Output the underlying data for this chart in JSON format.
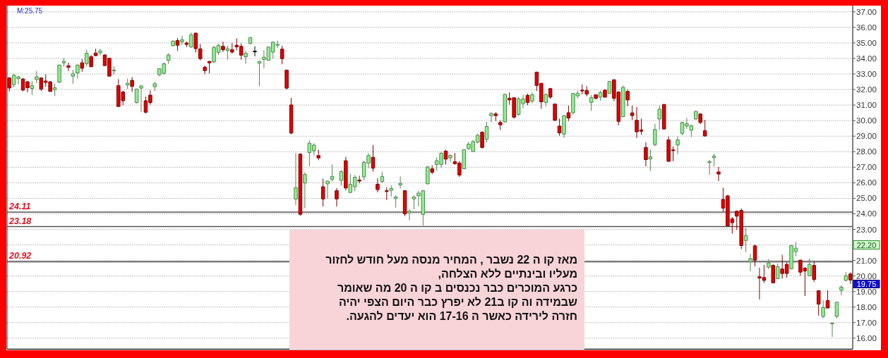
{
  "chart_data": {
    "type": "candlestick",
    "categories": [
      null,
      null,
      null,
      null,
      null,
      null,
      null,
      null,
      null,
      null,
      null,
      null,
      null,
      null,
      null,
      null,
      null,
      null,
      null,
      null,
      null,
      null,
      null,
      null,
      null,
      null,
      null,
      null,
      null,
      null,
      null,
      null,
      null,
      null,
      null,
      null,
      null,
      null,
      null,
      null,
      null,
      null,
      null,
      null,
      null,
      null,
      null,
      null,
      null,
      null,
      null,
      null,
      null,
      null,
      null,
      null,
      null,
      null,
      null,
      null,
      null,
      null,
      null,
      null,
      null,
      null,
      null,
      null,
      null,
      null,
      null,
      null,
      null,
      null,
      null,
      null,
      null,
      null,
      null,
      null,
      null,
      null,
      null,
      null,
      null,
      null,
      null,
      null,
      null,
      null,
      null,
      null,
      null,
      null,
      null,
      null,
      null,
      null,
      null,
      null,
      null,
      null,
      null,
      null,
      null,
      null,
      null,
      null,
      null,
      null,
      null,
      null,
      null,
      null,
      null,
      null,
      null,
      null,
      null,
      null,
      null,
      null,
      null,
      null,
      null,
      null,
      null,
      null,
      null,
      null,
      null,
      null,
      null,
      null,
      null,
      null,
      null,
      null,
      null,
      null,
      null,
      null,
      null,
      null,
      null,
      null,
      null,
      null,
      null,
      null,
      null,
      null,
      null,
      null,
      null,
      null,
      null,
      null,
      null,
      null,
      null,
      null,
      null,
      null,
      null,
      null,
      null,
      null,
      null,
      null,
      null,
      null,
      null,
      null,
      null,
      null,
      null,
      null,
      null,
      null,
      null,
      null,
      null,
      null,
      null,
      null
    ],
    "ohlc": [
      [
        32.74,
        32.8,
        31.88,
        32.1
      ],
      [
        32.32,
        33.02,
        32.15,
        32.92
      ],
      [
        32.71,
        32.88,
        32.32,
        32.82
      ],
      [
        32.68,
        32.73,
        31.88,
        31.97
      ],
      [
        32.5,
        32.55,
        31.83,
        32.12
      ],
      [
        32.07,
        32.55,
        31.65,
        32.25
      ],
      [
        32.64,
        33.19,
        32.4,
        32.82
      ],
      [
        32.74,
        32.8,
        31.91,
        32.03
      ],
      [
        32.55,
        32.98,
        32.18,
        32.46
      ],
      [
        32.5,
        32.55,
        31.85,
        31.88
      ],
      [
        32.0,
        32.37,
        31.58,
        32.12
      ],
      [
        32.47,
        33.62,
        32.43,
        33.57
      ],
      [
        33.71,
        34.02,
        33.49,
        33.81
      ],
      [
        33.53,
        33.74,
        33.19,
        33.43
      ],
      [
        32.86,
        33.26,
        32.37,
        33.01
      ],
      [
        33.07,
        33.63,
        32.7,
        33.57
      ],
      [
        33.72,
        33.96,
        33.14,
        33.37
      ],
      [
        33.66,
        34.56,
        33.49,
        34.33
      ],
      [
        34.11,
        34.21,
        33.44,
        33.47
      ],
      [
        34.35,
        34.63,
        34.14,
        34.18
      ],
      [
        34.36,
        34.62,
        34.2,
        34.48
      ],
      [
        34.23,
        34.26,
        33.51,
        33.54
      ],
      [
        34.01,
        34.04,
        32.85,
        32.86
      ],
      [
        33.2,
        33.49,
        32.95,
        33.26
      ],
      [
        32.25,
        32.67,
        30.88,
        30.91
      ],
      [
        31.85,
        31.91,
        30.99,
        31.28
      ],
      [
        32.29,
        32.7,
        32.03,
        32.4
      ],
      [
        32.59,
        32.8,
        31.85,
        32.21
      ],
      [
        31.16,
        32.06,
        31.1,
        32.03
      ],
      [
        32.09,
        32.25,
        30.54,
        32.24
      ],
      [
        31.28,
        31.55,
        30.46,
        30.54
      ],
      [
        31.64,
        31.95,
        31.03,
        31.16
      ],
      [
        32.18,
        32.5,
        31.91,
        32.37
      ],
      [
        32.95,
        33.37,
        32.85,
        33.34
      ],
      [
        33.04,
        33.74,
        32.96,
        33.66
      ],
      [
        33.87,
        34.33,
        33.66,
        34.23
      ],
      [
        34.82,
        35.15,
        34.78,
        35.12
      ],
      [
        35.15,
        35.3,
        34.48,
        34.85
      ],
      [
        35.08,
        35.45,
        34.88,
        35.2
      ],
      [
        35.0,
        35.08,
        34.74,
        34.9
      ],
      [
        34.74,
        35.67,
        34.68,
        35.52
      ],
      [
        35.63,
        35.67,
        34.38,
        34.63
      ],
      [
        34.62,
        34.93,
        33.87,
        33.99
      ],
      [
        33.44,
        33.54,
        32.98,
        33.22
      ],
      [
        33.81,
        33.84,
        33.04,
        33.72
      ],
      [
        33.78,
        34.82,
        33.72,
        34.71
      ],
      [
        34.38,
        34.93,
        34.23,
        34.85
      ],
      [
        34.78,
        35.08,
        34.41,
        34.56
      ],
      [
        34.51,
        34.81,
        33.92,
        34.62
      ],
      [
        34.56,
        35.0,
        34.32,
        34.41
      ],
      [
        34.85,
        35.3,
        34.53,
        34.75
      ],
      [
        34.78,
        34.97,
        33.92,
        34.21
      ],
      [
        34.11,
        34.48,
        33.66,
        34.33
      ],
      [
        34.96,
        35.4,
        34.91,
        35.33
      ],
      [
        34.47,
        34.78,
        34.14,
        34.47
      ],
      [
        33.69,
        33.84,
        32.22,
        33.81
      ],
      [
        33.93,
        34.53,
        33.37,
        34.08
      ],
      [
        33.89,
        34.76,
        33.86,
        34.74
      ],
      [
        34.41,
        35.08,
        33.99,
        35.05
      ],
      [
        34.85,
        35.15,
        34.68,
        34.9
      ],
      [
        34.6,
        34.82,
        33.63,
        33.99
      ],
      [
        33.25,
        33.28,
        32.0,
        32.09
      ],
      [
        31.01,
        31.46,
        29.13,
        29.2
      ],
      [
        24.95,
        27.91,
        24.56,
        25.68
      ],
      [
        27.84,
        27.9,
        23.88,
        23.97
      ],
      [
        25.98,
        26.68,
        24.37,
        26.53
      ],
      [
        27.94,
        28.73,
        27.05,
        28.54
      ],
      [
        28.06,
        28.54,
        27.75,
        28.42
      ],
      [
        27.75,
        28.12,
        27.45,
        27.6
      ],
      [
        25.74,
        26.27,
        24.47,
        24.96
      ],
      [
        25.93,
        26.15,
        24.96,
        26.11
      ],
      [
        26.23,
        27.17,
        26.08,
        26.41
      ],
      [
        25.49,
        25.66,
        24.47,
        24.96
      ],
      [
        26.15,
        26.82,
        25.81,
        26.72
      ],
      [
        27.42,
        27.67,
        25.51,
        25.66
      ],
      [
        25.37,
        26.56,
        25.34,
        25.9
      ],
      [
        25.74,
        26.5,
        25.46,
        26.35
      ],
      [
        26.18,
        26.45,
        25.96,
        26.11
      ],
      [
        26.38,
        27.42,
        26.15,
        27.32
      ],
      [
        27.27,
        27.91,
        26.94,
        27.75
      ],
      [
        27.64,
        28.42,
        26.72,
        26.94
      ],
      [
        25.9,
        26.3,
        25.38,
        25.56
      ],
      [
        26.08,
        26.72,
        25.98,
        26.41
      ],
      [
        25.49,
        25.71,
        24.89,
        25.44
      ],
      [
        25.51,
        25.83,
        25.11,
        25.63
      ],
      [
        24.99,
        25.19,
        24.4,
        25.08
      ],
      [
        25.86,
        26.42,
        25.63,
        25.96
      ],
      [
        25.49,
        25.53,
        23.85,
        24.0
      ],
      [
        24.07,
        24.29,
        23.58,
        24.18
      ],
      [
        24.96,
        25.19,
        24.29,
        25.08
      ],
      [
        25.16,
        25.49,
        24.47,
        25.34
      ],
      [
        23.97,
        25.51,
        23.25,
        25.49
      ],
      [
        25.93,
        27.08,
        25.9,
        27.02
      ],
      [
        26.9,
        27.12,
        26.57,
        26.68
      ],
      [
        27.18,
        27.64,
        26.78,
        27.42
      ],
      [
        27.18,
        27.99,
        26.97,
        27.9
      ],
      [
        28.04,
        28.12,
        27.17,
        27.52
      ],
      [
        27.6,
        27.84,
        27.35,
        27.76
      ],
      [
        27.35,
        27.91,
        27.17,
        27.23
      ],
      [
        27.27,
        27.39,
        26.38,
        26.5
      ],
      [
        26.9,
        28.16,
        26.87,
        28.13
      ],
      [
        28.19,
        28.64,
        28.12,
        28.49
      ],
      [
        28.01,
        28.76,
        27.99,
        28.65
      ],
      [
        28.61,
        29.16,
        28.54,
        29.06
      ],
      [
        29.25,
        29.32,
        28.21,
        28.27
      ],
      [
        28.8,
        29.92,
        28.61,
        29.62
      ],
      [
        30.32,
        30.54,
        29.88,
        30.46
      ],
      [
        30.43,
        30.54,
        29.98,
        30.32
      ],
      [
        29.88,
        30.02,
        29.4,
        29.73
      ],
      [
        29.92,
        31.74,
        29.88,
        31.69
      ],
      [
        31.44,
        31.84,
        31.02,
        31.33
      ],
      [
        31.47,
        31.5,
        30.14,
        30.22
      ],
      [
        30.4,
        31.51,
        30.32,
        31.41
      ],
      [
        31.1,
        31.66,
        30.8,
        31.39
      ],
      [
        31.63,
        31.74,
        30.99,
        31.17
      ],
      [
        31.26,
        31.81,
        31.11,
        31.66
      ],
      [
        33.12,
        33.15,
        31.91,
        32.26
      ],
      [
        32.4,
        32.43,
        30.77,
        31.21
      ],
      [
        31.17,
        31.74,
        30.92,
        31.69
      ],
      [
        32.06,
        32.11,
        31.41,
        31.51
      ],
      [
        31.07,
        31.1,
        29.98,
        30.02
      ],
      [
        29.65,
        30.13,
        29.03,
        29.21
      ],
      [
        29.13,
        30.37,
        28.88,
        30.32
      ],
      [
        30.51,
        30.96,
        29.98,
        30.17
      ],
      [
        30.51,
        31.78,
        30.4,
        31.74
      ],
      [
        31.59,
        31.93,
        31.44,
        31.76
      ],
      [
        31.96,
        32.33,
        31.69,
        31.91
      ],
      [
        31.93,
        32.21,
        31.56,
        31.71
      ],
      [
        31.17,
        31.66,
        30.62,
        31.48
      ],
      [
        31.66,
        31.69,
        31.36,
        31.44
      ],
      [
        31.51,
        31.93,
        31.29,
        31.81
      ],
      [
        31.96,
        32.03,
        31.48,
        31.51
      ],
      [
        31.76,
        32.55,
        31.74,
        32.52
      ],
      [
        32.63,
        32.66,
        31.26,
        31.44
      ],
      [
        31.84,
        31.88,
        29.7,
        29.95
      ],
      [
        30.25,
        32.26,
        30.22,
        32.14
      ],
      [
        31.88,
        32.0,
        30.92,
        31.33
      ],
      [
        30.5,
        30.96,
        30.05,
        30.32
      ],
      [
        30.02,
        30.87,
        28.88,
        29.28
      ],
      [
        29.4,
        30.13,
        29.09,
        29.32
      ],
      [
        28.27,
        28.61,
        27.05,
        27.49
      ],
      [
        27.54,
        28.16,
        26.75,
        27.67
      ],
      [
        28.46,
        29.8,
        28.34,
        29.43
      ],
      [
        30.1,
        30.95,
        29.4,
        30.74
      ],
      [
        31.04,
        31.07,
        29.43,
        29.46
      ],
      [
        28.76,
        28.98,
        27.35,
        27.38
      ],
      [
        28.12,
        28.34,
        27.39,
        28.07
      ],
      [
        28.43,
        28.98,
        27.84,
        28.76
      ],
      [
        29.18,
        29.92,
        29.06,
        29.88
      ],
      [
        29.65,
        30.17,
        29.47,
        29.8
      ],
      [
        29.38,
        29.73,
        28.95,
        29.68
      ],
      [
        30.1,
        30.65,
        30.07,
        30.59
      ],
      [
        30.43,
        30.47,
        29.77,
        29.88
      ],
      [
        29.35,
        30.05,
        28.98,
        29.01
      ],
      [
        27.3,
        27.46,
        26.5,
        27.37
      ],
      [
        27.61,
        27.86,
        27.05,
        27.72
      ],
      [
        26.7,
        27.02,
        26.11,
        26.56
      ],
      [
        24.93,
        25.68,
        24.14,
        24.37
      ],
      [
        25.16,
        25.22,
        23.18,
        23.22
      ],
      [
        23.67,
        23.8,
        22.73,
        23.43
      ],
      [
        24.17,
        24.22,
        22.98,
        23.85
      ],
      [
        24.22,
        24.35,
        21.73,
        21.96
      ],
      [
        22.28,
        23.1,
        21.54,
        22.61
      ],
      [
        20.92,
        21.42,
        20.32,
        21.12
      ],
      [
        21.94,
        22.02,
        20.62,
        21.02
      ],
      [
        19.95,
        20.53,
        18.49,
        19.87
      ],
      [
        19.9,
        20.72,
        19.56,
        19.72
      ],
      [
        20.57,
        21.09,
        20.45,
        20.84
      ],
      [
        20.68,
        20.75,
        19.53,
        19.56
      ],
      [
        19.83,
        20.8,
        19.8,
        20.6
      ],
      [
        20.45,
        21.36,
        19.83,
        20.16
      ],
      [
        20.75,
        20.87,
        19.9,
        20.16
      ],
      [
        20.47,
        21.99,
        20.42,
        21.96
      ],
      [
        21.58,
        22.18,
        21.27,
        21.79
      ],
      [
        21.02,
        21.06,
        20.01,
        20.25
      ],
      [
        20.5,
        20.57,
        18.71,
        20.32
      ],
      [
        20.01,
        21.12,
        19.98,
        20.75
      ],
      [
        20.68,
        20.95,
        19.61,
        19.78
      ],
      [
        19.06,
        19.08,
        17.45,
        18.19
      ],
      [
        17.4,
        18.45,
        17.27,
        17.97
      ],
      [
        18.42,
        19.08,
        17.89,
        17.94
      ],
      [
        16.93,
        16.97,
        16.08,
        16.97
      ],
      [
        17.4,
        18.34,
        17.27,
        18.31
      ],
      [
        19.08,
        19.41,
        18.76,
        19.28
      ],
      [
        19.72,
        20.25,
        19.65,
        20.02
      ],
      [
        20.13,
        20.23,
        19.49,
        19.75
      ]
    ],
    "colors": [
      "#dd0000",
      "#90ee90",
      "#90ee90",
      "#dd0000",
      "#dd0000",
      "#90ee90",
      "#90ee90",
      "#dd0000",
      "#dd0000",
      "#dd0000",
      "#90ee90",
      "#90ee90",
      "#90ee90",
      "#dd0000",
      "#90ee90",
      "#90ee90",
      "#dd0000",
      "#90ee90",
      "#dd0000",
      "#dd0000",
      "#90ee90",
      "#dd0000",
      "#dd0000",
      "#90ee90",
      "#dd0000",
      "#dd0000",
      "#90ee90",
      "#dd0000",
      "#90ee90",
      "#90ee90",
      "#dd0000",
      "#dd0000",
      "#90ee90",
      "#90ee90",
      "#90ee90",
      "#90ee90",
      "#90ee90",
      "#dd0000",
      "#90ee90",
      "#dd0000",
      "#90ee90",
      "#dd0000",
      "#dd0000",
      "#dd0000",
      "#dd0000",
      "#90ee90",
      "#90ee90",
      "#dd0000",
      "#90ee90",
      "#dd0000",
      "#dd0000",
      "#dd0000",
      "#90ee90",
      "#90ee90",
      "#000000",
      "#90ee90",
      "#90ee90",
      "#90ee90",
      "#90ee90",
      "#90ee90",
      "#dd0000",
      "#dd0000",
      "#dd0000",
      "#90ee90",
      "#dd0000",
      "#90ee90",
      "#90ee90",
      "#90ee90",
      "#dd0000",
      "#dd0000",
      "#90ee90",
      "#90ee90",
      "#dd0000",
      "#90ee90",
      "#dd0000",
      "#90ee90",
      "#90ee90",
      "#dd0000",
      "#90ee90",
      "#90ee90",
      "#dd0000",
      "#dd0000",
      "#90ee90",
      "#dd0000",
      "#90ee90",
      "#90ee90",
      "#90ee90",
      "#dd0000",
      "#90ee90",
      "#90ee90",
      "#90ee90",
      "#90ee90",
      "#90ee90",
      "#dd0000",
      "#90ee90",
      "#90ee90",
      "#dd0000",
      "#90ee90",
      "#dd0000",
      "#dd0000",
      "#90ee90",
      "#90ee90",
      "#90ee90",
      "#90ee90",
      "#dd0000",
      "#90ee90",
      "#90ee90",
      "#dd0000",
      "#dd0000",
      "#90ee90",
      "#dd0000",
      "#dd0000",
      "#90ee90",
      "#90ee90",
      "#dd0000",
      "#90ee90",
      "#dd0000",
      "#dd0000",
      "#90ee90",
      "#dd0000",
      "#dd0000",
      "#dd0000",
      "#90ee90",
      "#dd0000",
      "#90ee90",
      "#90ee90",
      "#dd0000",
      "#dd0000",
      "#90ee90",
      "#dd0000",
      "#90ee90",
      "#dd0000",
      "#90ee90",
      "#dd0000",
      "#dd0000",
      "#90ee90",
      "#dd0000",
      "#dd0000",
      "#dd0000",
      "#dd0000",
      "#dd0000",
      "#90ee90",
      "#90ee90",
      "#90ee90",
      "#dd0000",
      "#dd0000",
      "#dd0000",
      "#90ee90",
      "#90ee90",
      "#90ee90",
      "#90ee90",
      "#90ee90",
      "#dd0000",
      "#dd0000",
      "#90ee90",
      "#90ee90",
      "#dd0000",
      "#dd0000",
      "#dd0000",
      "#dd0000",
      "#dd0000",
      "#dd0000",
      "#90ee90",
      "#90ee90",
      "#dd0000",
      "#dd0000",
      "#dd0000",
      "#90ee90",
      "#dd0000",
      "#90ee90",
      "#dd0000",
      "#dd0000",
      "#90ee90",
      "#90ee90",
      "#dd0000",
      "#dd0000",
      "#90ee90",
      "#dd0000",
      "#dd0000",
      "#90ee90",
      "#dd0000",
      "#90ee90",
      "#90ee90",
      "#90ee90",
      "#90ee90",
      "#dd0000"
    ],
    "ylim": [
      15.29,
      37.4
    ],
    "yticks": [
      {
        "value": 16,
        "label": "16.00"
      },
      {
        "value": 17,
        "label": "17.00"
      },
      {
        "value": 18,
        "label": "18.00"
      },
      {
        "value": 19,
        "label": "19.00"
      },
      {
        "value": 20,
        "label": "20.00"
      },
      {
        "value": 21,
        "label": "21.00"
      },
      {
        "value": 22,
        "label": null
      },
      {
        "value": 23,
        "label": "23.00"
      },
      {
        "value": 24,
        "label": "24.00"
      },
      {
        "value": 25,
        "label": "25.00"
      },
      {
        "value": 26,
        "label": "26.00"
      },
      {
        "value": 27,
        "label": "27.00"
      },
      {
        "value": 28,
        "label": "28.00"
      },
      {
        "value": 29,
        "label": "29.00"
      },
      {
        "value": 30,
        "label": "30.00"
      },
      {
        "value": 31,
        "label": "31.00"
      },
      {
        "value": 32,
        "label": "32.00"
      },
      {
        "value": 33,
        "label": "33.00"
      },
      {
        "value": 34,
        "label": "34.00"
      },
      {
        "value": 35,
        "label": "35.00"
      },
      {
        "value": 36,
        "label": "36.00"
      },
      {
        "value": 37,
        "label": "37.00"
      }
    ],
    "tick_labels": "y",
    "grid": "y",
    "ref_lines": [
      {
        "axis": "y",
        "value": 24.11,
        "label": "24.11",
        "color": "#555555"
      },
      {
        "axis": "y",
        "value": 23.18,
        "label": "23.18",
        "color": "#555555"
      },
      {
        "axis": "y",
        "value": 20.92,
        "label": "20.92",
        "color": "#555555"
      }
    ],
    "annotations": [
      "M:25.75",
      "22.20",
      "19.75",
      "מאז קו ה 22 נשבר , המחיר מנסה מעל חודש לחזור\nמעליו ובינתיים ללא הצלחה,\nכרגע המוכרים כבר נכנסים ב קו ה 20 מה שאומר\nשבמידה וה קו ב21 לא יפרץ כבר היום הצפי יהיה\nחזרה לירידה כאשר ה 17-16 הוא יעדים להגעה."
    ]
  }
}
